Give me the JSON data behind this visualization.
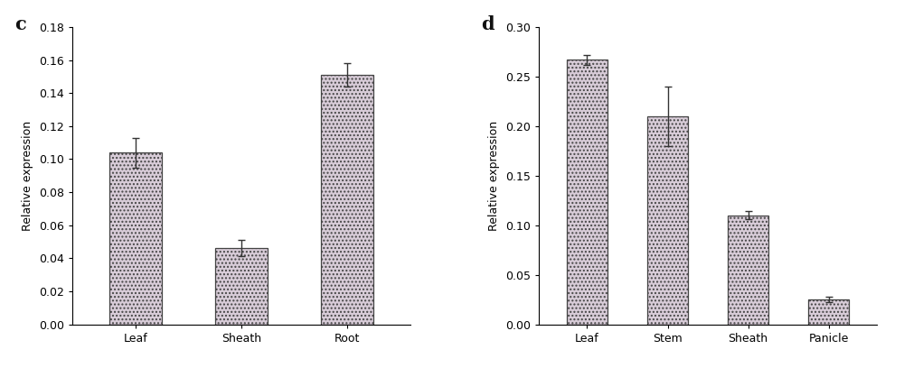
{
  "chart_c": {
    "categories": [
      "Leaf",
      "Sheath",
      "Root"
    ],
    "values": [
      0.104,
      0.046,
      0.151
    ],
    "errors": [
      0.009,
      0.005,
      0.007
    ],
    "ylabel": "Relative expression",
    "ylim": [
      0,
      0.18
    ],
    "yticks": [
      0.0,
      0.02,
      0.04,
      0.06,
      0.08,
      0.1,
      0.12,
      0.14,
      0.16,
      0.18
    ],
    "label": "c"
  },
  "chart_d": {
    "categories": [
      "Leaf",
      "Stem",
      "Sheath",
      "Panicle"
    ],
    "values": [
      0.267,
      0.21,
      0.11,
      0.025
    ],
    "errors": [
      0.005,
      0.03,
      0.004,
      0.003
    ],
    "ylabel": "Relative expression",
    "ylim": [
      0,
      0.3
    ],
    "yticks": [
      0.0,
      0.05,
      0.1,
      0.15,
      0.2,
      0.25,
      0.3
    ],
    "label": "d"
  },
  "bar_color": "#d8ccd8",
  "bar_edge_color": "#444444",
  "bar_width": 0.5,
  "error_color": "#333333",
  "error_capsize": 3,
  "error_linewidth": 1.0,
  "tick_fontsize": 9,
  "label_fontsize": 9,
  "panel_label_fontsize": 15,
  "background_color": "#ffffff",
  "hatch": "....",
  "hatch_color": "#aaaaaa"
}
